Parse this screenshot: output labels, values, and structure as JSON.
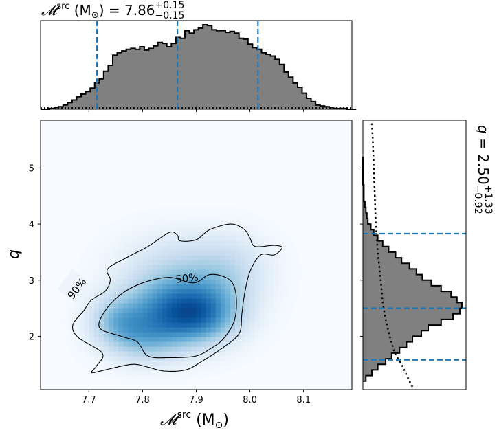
{
  "chart_data": [
    {
      "panel": "joint",
      "type": "heatmap",
      "xlabel_sym": "𝓜",
      "xlabel_sup": "src",
      "xlabel_unit": "(M",
      "xlabel_sun": "⊙",
      "xlabel_close": ")",
      "ylabel": "q",
      "xlim": [
        7.61,
        8.19
      ],
      "ylim": [
        1.05,
        5.85
      ],
      "xticks": [
        "7.7",
        "7.8",
        "7.9",
        "8.0",
        "8.1"
      ],
      "yticks": [
        "2",
        "3",
        "4",
        "5"
      ],
      "colormap": "Blues",
      "contour_labels": [
        "90%",
        "50%"
      ],
      "contour_90": [
        [
          7.69,
          2.45
        ],
        [
          7.705,
          2.65
        ],
        [
          7.73,
          2.8
        ],
        [
          7.74,
          3.0
        ],
        [
          7.735,
          3.2
        ],
        [
          7.77,
          3.4
        ],
        [
          7.81,
          3.6
        ],
        [
          7.85,
          3.85
        ],
        [
          7.865,
          3.8
        ],
        [
          7.87,
          3.7
        ],
        [
          7.9,
          3.72
        ],
        [
          7.925,
          3.9
        ],
        [
          7.965,
          4.0
        ],
        [
          7.99,
          3.9
        ],
        [
          8.0,
          3.75
        ],
        [
          8.01,
          3.6
        ],
        [
          8.045,
          3.62
        ],
        [
          8.06,
          3.58
        ],
        [
          8.045,
          3.45
        ],
        [
          8.02,
          3.45
        ],
        [
          8.0,
          3.15
        ],
        [
          7.99,
          2.75
        ],
        [
          7.985,
          2.4
        ],
        [
          7.98,
          2.05
        ],
        [
          7.95,
          1.8
        ],
        [
          7.91,
          1.55
        ],
        [
          7.88,
          1.4
        ],
        [
          7.84,
          1.38
        ],
        [
          7.81,
          1.45
        ],
        [
          7.78,
          1.5
        ],
        [
          7.73,
          1.4
        ],
        [
          7.705,
          1.35
        ],
        [
          7.715,
          1.48
        ],
        [
          7.725,
          1.7
        ],
        [
          7.68,
          1.98
        ],
        [
          7.67,
          2.2
        ],
        [
          7.69,
          2.45
        ]
      ],
      "contour_50": [
        [
          7.72,
          2.15
        ],
        [
          7.73,
          2.45
        ],
        [
          7.76,
          2.75
        ],
        [
          7.8,
          2.95
        ],
        [
          7.85,
          3.05
        ],
        [
          7.895,
          2.95
        ],
        [
          7.925,
          3.1
        ],
        [
          7.955,
          3.05
        ],
        [
          7.97,
          2.9
        ],
        [
          7.975,
          2.6
        ],
        [
          7.97,
          2.25
        ],
        [
          7.95,
          1.95
        ],
        [
          7.93,
          1.8
        ],
        [
          7.9,
          1.65
        ],
        [
          7.85,
          1.62
        ],
        [
          7.81,
          1.65
        ],
        [
          7.79,
          1.9
        ],
        [
          7.76,
          2.0
        ],
        [
          7.72,
          2.15
        ]
      ],
      "density_blobs": [
        {
          "x": 7.84,
          "y": 2.5,
          "sx": 0.06,
          "sy": 0.45,
          "w": 1.0
        },
        {
          "x": 7.91,
          "y": 2.35,
          "sx": 0.05,
          "sy": 0.35,
          "w": 0.85
        },
        {
          "x": 7.75,
          "y": 2.3,
          "sx": 0.035,
          "sy": 0.3,
          "w": 0.55
        },
        {
          "x": 7.8,
          "y": 1.95,
          "sx": 0.05,
          "sy": 0.3,
          "w": 0.55
        },
        {
          "x": 7.93,
          "y": 2.8,
          "sx": 0.06,
          "sy": 0.45,
          "w": 0.45
        },
        {
          "x": 7.87,
          "y": 3.4,
          "sx": 0.08,
          "sy": 0.4,
          "w": 0.25
        },
        {
          "x": 7.97,
          "y": 3.3,
          "sx": 0.05,
          "sy": 0.4,
          "w": 0.2
        }
      ]
    },
    {
      "panel": "top-marginal",
      "type": "histogram",
      "title_sym": "𝓜",
      "title_sup": "src",
      "title_unit": "(M",
      "title_sun": "⊙",
      "title_eq": ") = 7.86",
      "title_plus": "+0.15",
      "title_minus": "−0.15",
      "bin_edges_start": 7.61,
      "bin_width": 0.0084,
      "counts": [
        0,
        0,
        1,
        2,
        3,
        5,
        8,
        11,
        15,
        18,
        21,
        25,
        31,
        36,
        45,
        52,
        64,
        67,
        69,
        71,
        72,
        71,
        74,
        70,
        72,
        75,
        79,
        78,
        74,
        78,
        85,
        84,
        93,
        90,
        94,
        96,
        100,
        99,
        94,
        93,
        93,
        91,
        92,
        90,
        84,
        83,
        77,
        73,
        71,
        67,
        65,
        63,
        59,
        53,
        44,
        38,
        31,
        26,
        19,
        13,
        9,
        5,
        4,
        3,
        2,
        1,
        1,
        1,
        0,
        0
      ],
      "quantile_lines": [
        7.715,
        7.865,
        8.015
      ],
      "prior_level": 0.015
    },
    {
      "panel": "right-marginal",
      "type": "histogram",
      "title_sym": "q",
      "title_eq": " = 2.50",
      "title_plus": "+1.33",
      "title_minus": "−0.92",
      "bin_edges_start": 1.2,
      "bin_width": 0.1,
      "counts": [
        3,
        9,
        15,
        23,
        29,
        37,
        44,
        50,
        59,
        66,
        79,
        91,
        98,
        100,
        95,
        89,
        79,
        69,
        60,
        54,
        47,
        39,
        33,
        26,
        20,
        15,
        11,
        8,
        5,
        4,
        3,
        2,
        1,
        1,
        1,
        0,
        0,
        0,
        0,
        0
      ],
      "quantile_lines": [
        1.58,
        2.5,
        3.83
      ],
      "prior_curve": [
        [
          1.1,
          50
        ],
        [
          1.2,
          47
        ],
        [
          1.5,
          39
        ],
        [
          1.7,
          32
        ],
        [
          2.0,
          27
        ],
        [
          2.3,
          23
        ],
        [
          2.6,
          20
        ],
        [
          3.0,
          18
        ],
        [
          3.5,
          15
        ],
        [
          4.0,
          13
        ],
        [
          4.5,
          12
        ],
        [
          5.0,
          11
        ],
        [
          5.5,
          10
        ],
        [
          5.8,
          9
        ]
      ]
    }
  ]
}
